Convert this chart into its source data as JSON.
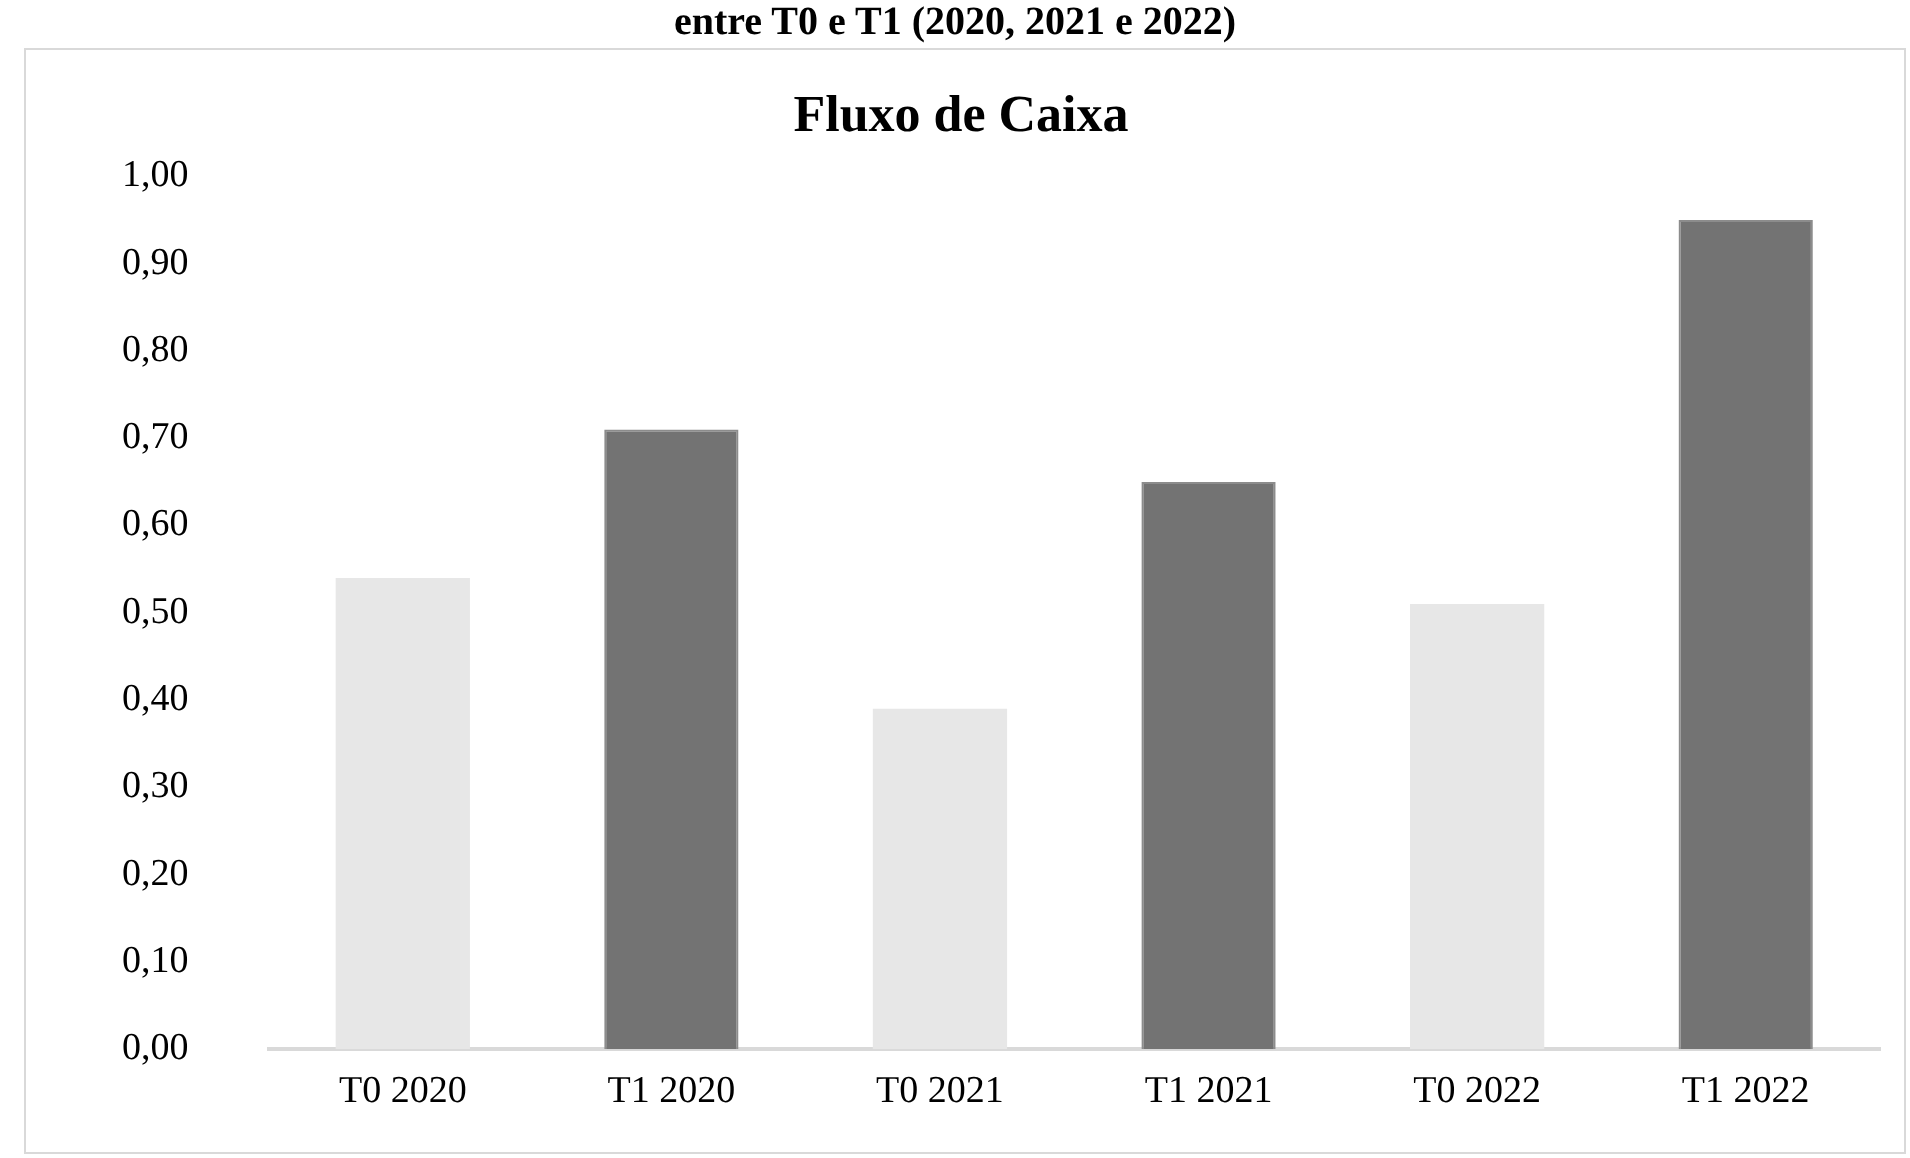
{
  "chart_data": {
    "type": "bar",
    "title": "Fluxo de Caixa",
    "annotations": [
      "entre T0 e T1 (2020, 2021 e 2022)"
    ],
    "categories": [
      "T0 2020",
      "T1 2020",
      "T0 2021",
      "T1 2021",
      "T0 2022",
      "T1 2022"
    ],
    "values": [
      0.54,
      0.71,
      0.39,
      0.65,
      0.51,
      0.95
    ],
    "colors": [
      "#e7e7e7",
      "#737373",
      "#e7e7e7",
      "#737373",
      "#e7e7e7",
      "#737373"
    ],
    "ylim": [
      0,
      1
    ],
    "yticks": [
      {
        "value": 0,
        "label": "0,00"
      },
      {
        "value": 0.1,
        "label": "0,10"
      },
      {
        "value": 0.2,
        "label": "0,20"
      },
      {
        "value": 0.3,
        "label": "0,30"
      },
      {
        "value": 0.4,
        "label": "0,40"
      },
      {
        "value": 0.5,
        "label": "0,50"
      },
      {
        "value": 0.6,
        "label": "0,60"
      },
      {
        "value": 0.7,
        "label": "0,70"
      },
      {
        "value": 0.8,
        "label": "0,80"
      },
      {
        "value": 0.9,
        "label": "0,90"
      },
      {
        "value": 1,
        "label": "1,00"
      }
    ],
    "grid": false,
    "legend": false
  }
}
